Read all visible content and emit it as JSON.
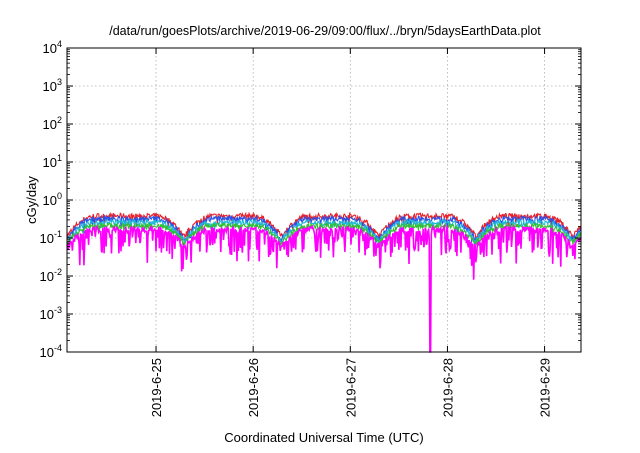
{
  "chart_data": {
    "type": "line",
    "title": "/data/run/goesPlots/archive/2019-06-29/09:00/flux/../bryn/5daysEarthData.plot",
    "xlabel": "Coordinated Universal Time (UTC)",
    "ylabel": "cGy/day",
    "yscale": "log",
    "ylim": [
      0.0001,
      10000
    ],
    "xlim": [
      "2019-06-24T02:00",
      "2019-06-29T09:00"
    ],
    "grid": true,
    "legend": "none",
    "x_ticks": [
      "2019-6-25",
      "2019-6-26",
      "2019-6-27",
      "2019-6-28",
      "2019-6-29"
    ],
    "y_ticks": [
      {
        "value": 0.0001,
        "base": "10",
        "exp": "-4"
      },
      {
        "value": 0.001,
        "base": "10",
        "exp": "-3"
      },
      {
        "value": 0.01,
        "base": "10",
        "exp": "-2"
      },
      {
        "value": 0.1,
        "base": "10",
        "exp": "-1"
      },
      {
        "value": 1,
        "base": "10",
        "exp": "0"
      },
      {
        "value": 10,
        "base": "10",
        "exp": "1"
      },
      {
        "value": 100,
        "base": "10",
        "exp": "2"
      },
      {
        "value": 1000,
        "base": "10",
        "exp": "3"
      },
      {
        "value": 10000,
        "base": "10",
        "exp": "4"
      }
    ],
    "series": [
      {
        "color": "#e8202a",
        "base": 0.38,
        "day_amp": 0.6,
        "noise": 0.25
      },
      {
        "color": "#2a52e8",
        "base": 0.32,
        "day_amp": 0.6,
        "noise": 0.25
      },
      {
        "color": "#20b8d8",
        "base": 0.26,
        "day_amp": 0.55,
        "noise": 0.2
      },
      {
        "color": "#30c030",
        "base": 0.21,
        "day_amp": 0.5,
        "noise": 0.15
      },
      {
        "color": "#ff00ff",
        "base": 0.17,
        "day_amp": 0.5,
        "noise": 0.9
      }
    ],
    "dropout": {
      "series_color": "#ff00ff",
      "x": "2019-06-27T19:45",
      "value": 0.0001
    },
    "daily_minimum_times": [
      "2019-06-24T02:00",
      "2019-06-25T07:00",
      "2019-06-26T07:00",
      "2019-06-27T07:00",
      "2019-06-28T07:00",
      "2019-06-29T07:00"
    ]
  }
}
